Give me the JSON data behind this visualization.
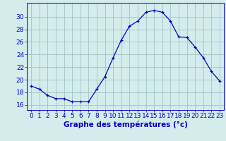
{
  "hours": [
    0,
    1,
    2,
    3,
    4,
    5,
    6,
    7,
    8,
    9,
    10,
    11,
    12,
    13,
    14,
    15,
    16,
    17,
    18,
    19,
    20,
    21,
    22,
    23
  ],
  "temps": [
    19.0,
    18.5,
    17.5,
    17.0,
    17.0,
    16.5,
    16.5,
    16.5,
    18.5,
    20.5,
    23.5,
    26.3,
    28.5,
    29.3,
    30.7,
    31.0,
    30.7,
    29.3,
    26.8,
    26.7,
    25.2,
    23.5,
    21.3,
    19.8
  ],
  "line_color": "#0000cc",
  "marker": "+",
  "bg_color": "#d4ecec",
  "grid_color": "#a0c4c4",
  "xlabel": "Graphe des températures (°c)",
  "ylabel_ticks": [
    16,
    18,
    20,
    22,
    24,
    26,
    28,
    30
  ],
  "ylim": [
    15.2,
    32.2
  ],
  "xlim": [
    -0.5,
    23.5
  ],
  "xlabel_fontsize": 7.5,
  "tick_fontsize": 6.5,
  "axis_color": "#0000cc"
}
